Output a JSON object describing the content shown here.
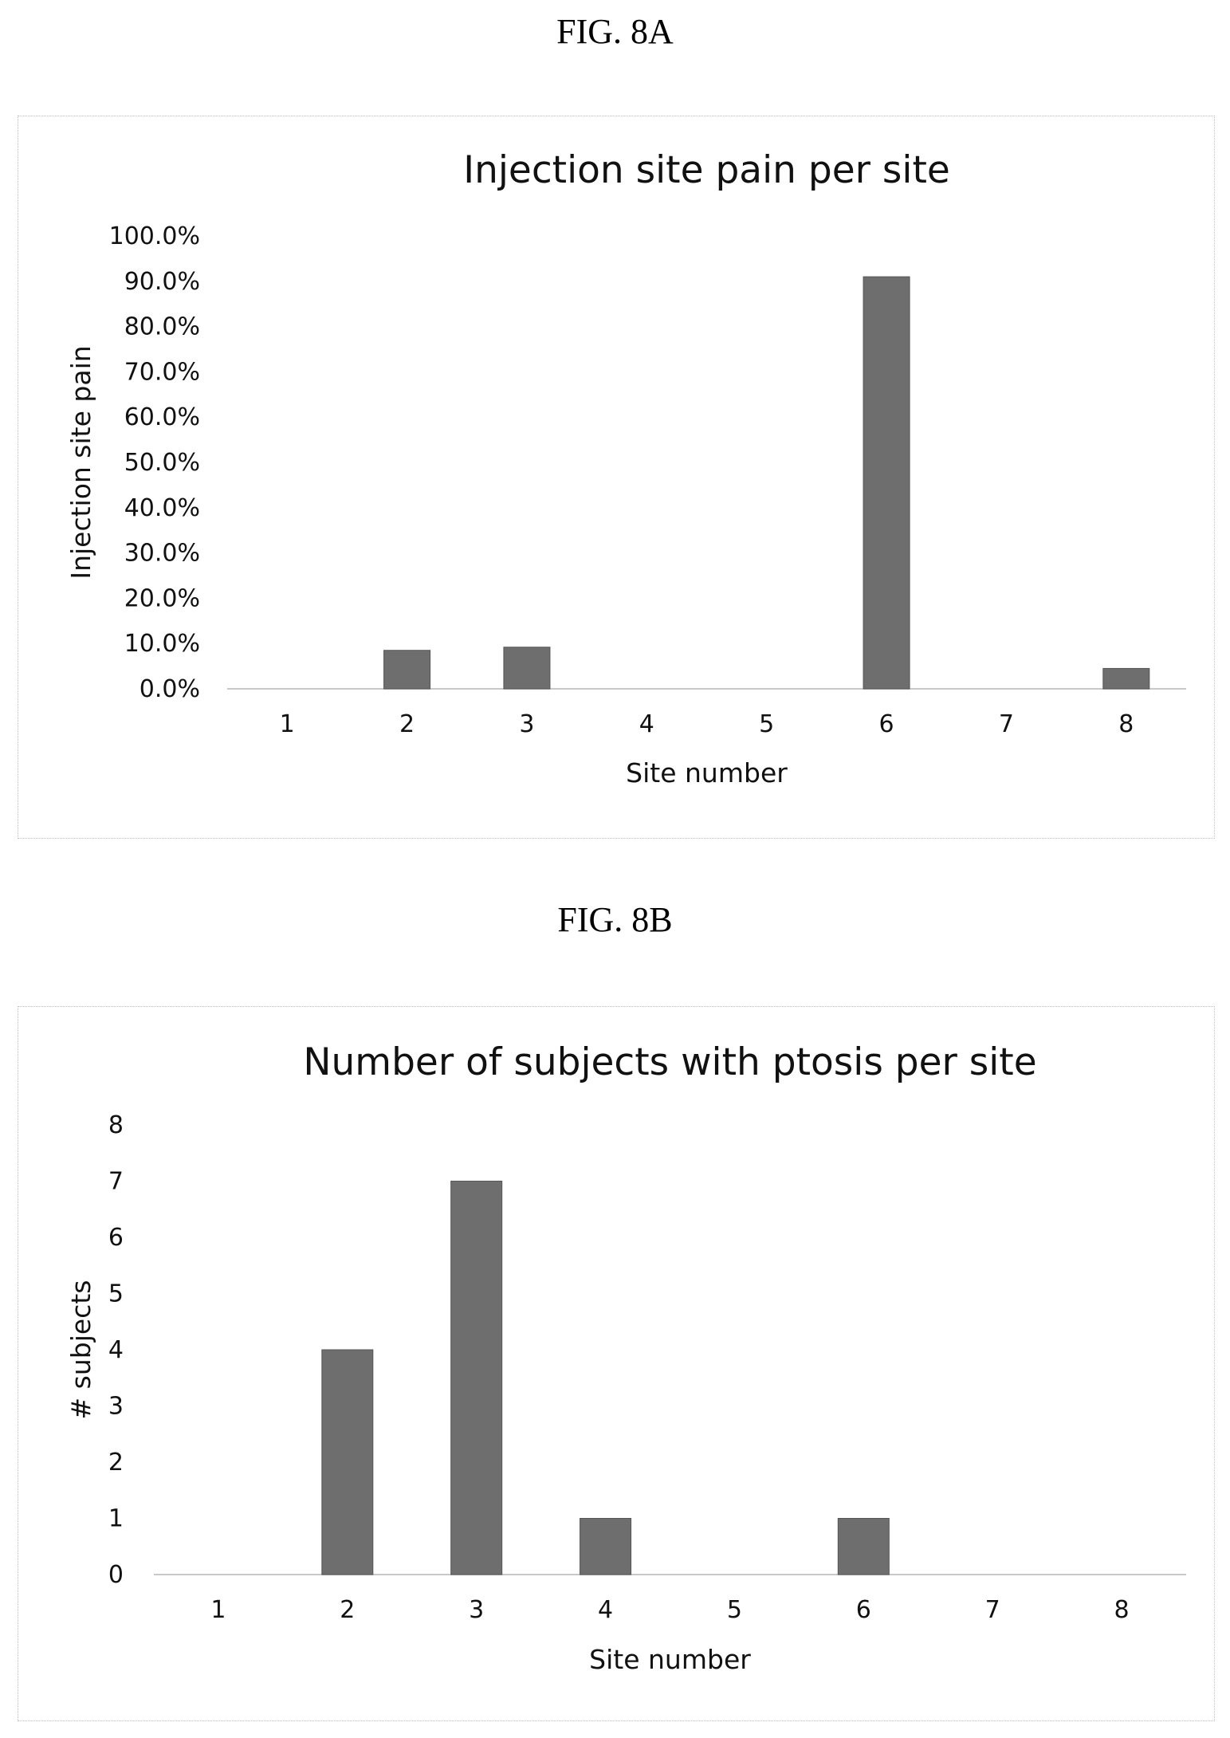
{
  "figures": [
    {
      "label": "FIG. 8A"
    },
    {
      "label": "FIG. 8B"
    }
  ],
  "chart_data": [
    {
      "type": "bar",
      "title": "Injection site pain per site",
      "xlabel": "Site number",
      "ylabel": "Injection site pain",
      "categories": [
        "1",
        "2",
        "3",
        "4",
        "5",
        "6",
        "7",
        "8"
      ],
      "values": [
        0.0,
        8.5,
        9.2,
        0.0,
        0.0,
        91.0,
        0.0,
        4.5
      ],
      "ylim": [
        0,
        100
      ],
      "yticks": [
        "0.0%",
        "10.0%",
        "20.0%",
        "30.0%",
        "40.0%",
        "50.0%",
        "60.0%",
        "70.0%",
        "80.0%",
        "90.0%",
        "100.0%"
      ],
      "grid": false,
      "bar_color": "#6e6e6e"
    },
    {
      "type": "bar",
      "title": "Number of subjects with ptosis per site",
      "xlabel": "Site number",
      "ylabel": "# subjects",
      "categories": [
        "1",
        "2",
        "3",
        "4",
        "5",
        "6",
        "7",
        "8"
      ],
      "values": [
        0,
        4,
        7,
        1,
        0,
        1,
        0,
        0
      ],
      "ylim": [
        0,
        8
      ],
      "yticks": [
        "0",
        "1",
        "2",
        "3",
        "4",
        "5",
        "6",
        "7",
        "8"
      ],
      "grid": false,
      "bar_color": "#6e6e6e"
    }
  ]
}
